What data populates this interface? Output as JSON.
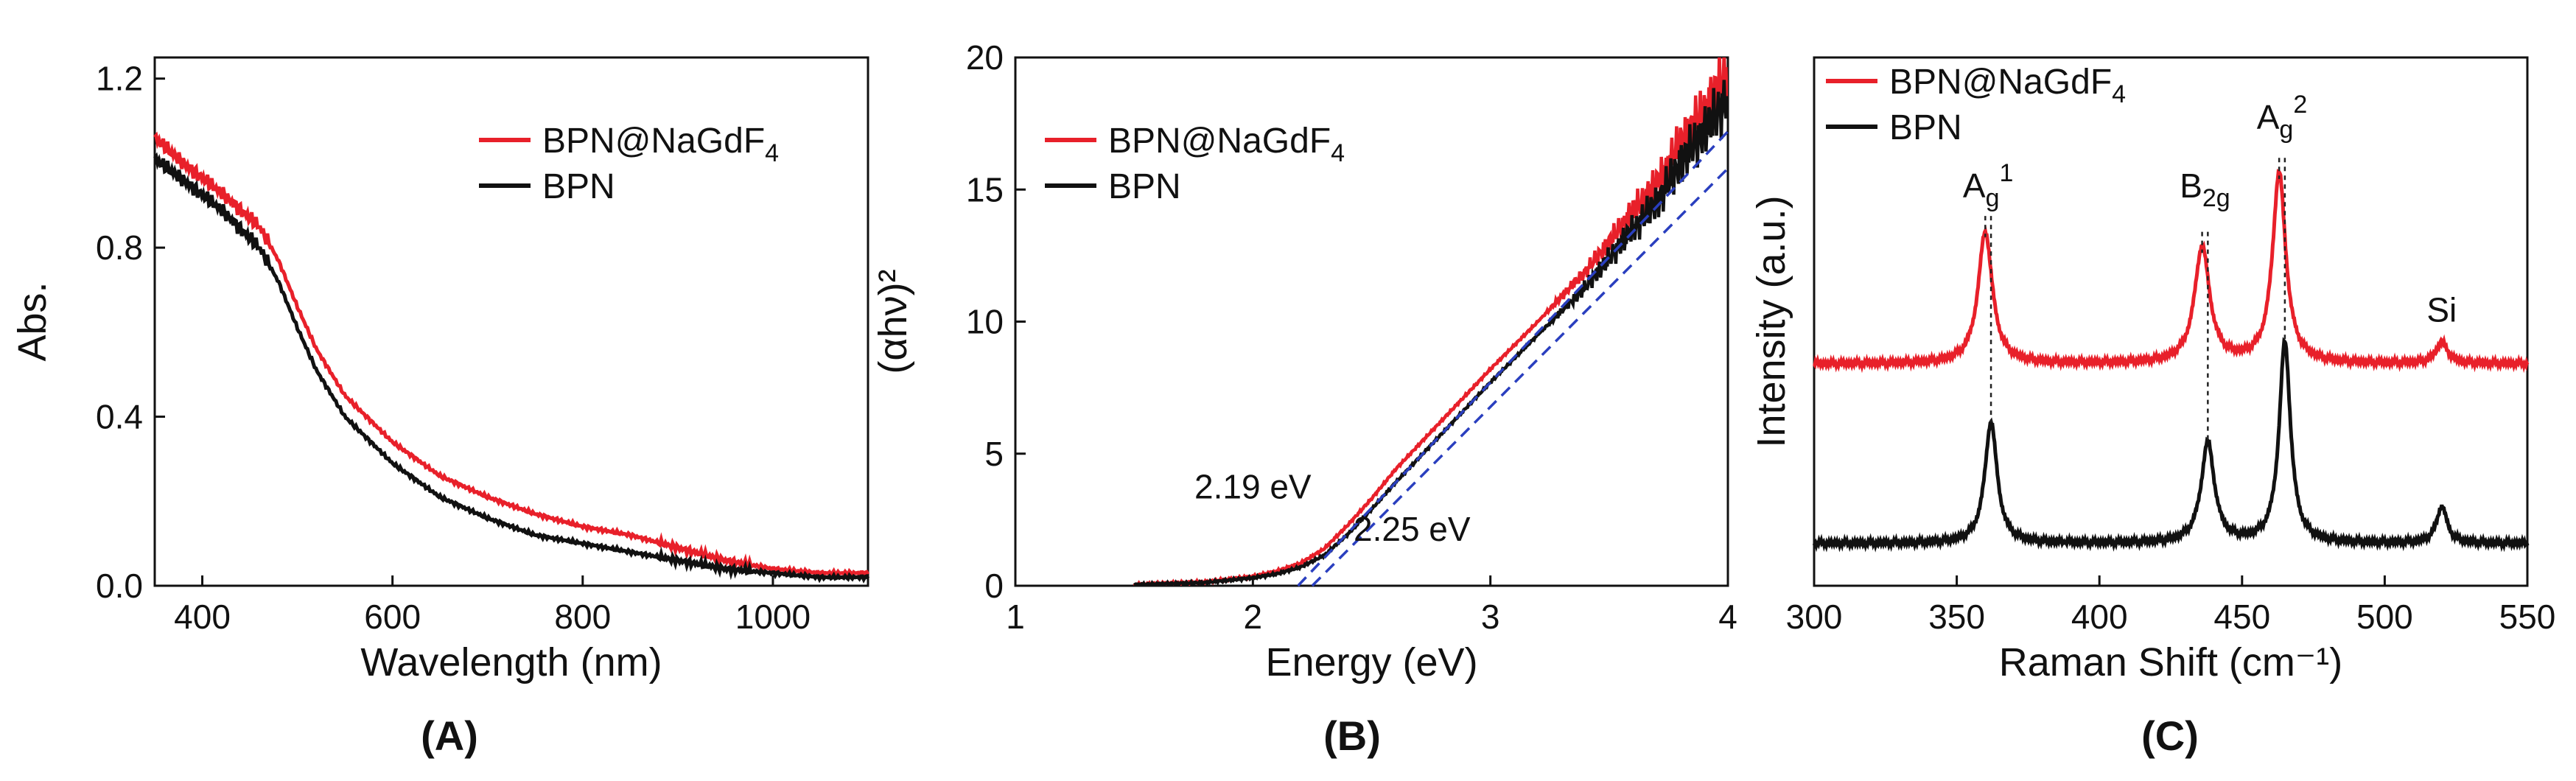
{
  "figure": {
    "panels": [
      "(A)",
      "(B)",
      "(C)"
    ]
  },
  "chart_data": [
    {
      "type": "line",
      "panel_label": "(A)",
      "xlabel": "Wavelength (nm)",
      "ylabel": "Abs.",
      "xlim": [
        350,
        1100
      ],
      "ylim": [
        0,
        1.25
      ],
      "xticks": [
        400,
        600,
        800,
        1000
      ],
      "xtick_labels": [
        "400",
        "600",
        "800",
        "1000"
      ],
      "yticks": [
        0,
        0.4,
        0.8,
        1.2
      ],
      "ytick_labels": [
        "0.0",
        "0.4",
        "0.8",
        "1.2"
      ],
      "legend": {
        "position": "top-right",
        "entries": [
          {
            "base": "BPN@NaGdF",
            "sub": "4",
            "color": "#e8202a"
          },
          {
            "base": "BPN",
            "sub": "",
            "color": "#111111"
          }
        ]
      },
      "series": [
        {
          "name": "BPN@NaGdF4",
          "color": "#e8202a",
          "x": [
            350,
            380,
            420,
            460,
            480,
            500,
            520,
            550,
            600,
            650,
            700,
            750,
            800,
            850,
            900,
            950,
            1000,
            1050,
            1100
          ],
          "y": [
            1.06,
            1.0,
            0.93,
            0.85,
            0.77,
            0.66,
            0.56,
            0.45,
            0.34,
            0.26,
            0.21,
            0.17,
            0.14,
            0.12,
            0.09,
            0.06,
            0.04,
            0.03,
            0.03
          ]
        },
        {
          "name": "BPN",
          "color": "#111111",
          "x": [
            350,
            380,
            420,
            460,
            480,
            500,
            520,
            550,
            600,
            650,
            700,
            750,
            800,
            850,
            900,
            950,
            1000,
            1050,
            1100
          ],
          "y": [
            1.01,
            0.96,
            0.89,
            0.8,
            0.72,
            0.61,
            0.51,
            0.4,
            0.29,
            0.21,
            0.16,
            0.12,
            0.1,
            0.08,
            0.06,
            0.04,
            0.03,
            0.02,
            0.02
          ]
        }
      ]
    },
    {
      "type": "line",
      "panel_label": "(B)",
      "xlabel": "Energy (eV)",
      "ylabel": "(αhν)²",
      "xlim": [
        1,
        4
      ],
      "ylim": [
        0,
        20
      ],
      "xticks": [
        1,
        2,
        3,
        4
      ],
      "xtick_labels": [
        "1",
        "2",
        "3",
        "4"
      ],
      "yticks": [
        0,
        5,
        10,
        15,
        20
      ],
      "ytick_labels": [
        "0",
        "5",
        "10",
        "15",
        "20"
      ],
      "legend": {
        "position": "top-left",
        "entries": [
          {
            "base": "BPN@NaGdF",
            "sub": "4",
            "color": "#e8202a"
          },
          {
            "base": "BPN",
            "sub": "",
            "color": "#111111"
          }
        ]
      },
      "series": [
        {
          "name": "BPN@NaGdF4",
          "color": "#e8202a",
          "x": [
            1.5,
            1.8,
            2.0,
            2.1,
            2.2,
            2.3,
            2.4,
            2.5,
            2.6,
            2.8,
            3.0,
            3.2,
            3.4,
            3.5,
            3.6,
            3.7,
            3.8,
            3.9,
            4.0
          ],
          "y": [
            0.05,
            0.15,
            0.35,
            0.55,
            0.85,
            1.4,
            2.3,
            3.3,
            4.4,
            6.3,
            8.2,
            10.0,
            11.9,
            13.0,
            14.2,
            15.2,
            16.8,
            18.0,
            19.5
          ]
        },
        {
          "name": "BPN",
          "color": "#111111",
          "x": [
            1.5,
            1.8,
            2.0,
            2.1,
            2.2,
            2.3,
            2.4,
            2.5,
            2.6,
            2.8,
            3.0,
            3.2,
            3.4,
            3.5,
            3.6,
            3.7,
            3.8,
            3.9,
            4.0
          ],
          "y": [
            0.04,
            0.12,
            0.3,
            0.45,
            0.7,
            1.15,
            1.95,
            2.9,
            3.9,
            5.8,
            7.7,
            9.5,
            11.3,
            12.4,
            13.5,
            14.5,
            16.0,
            17.2,
            18.5
          ]
        }
      ],
      "fit_lines": [
        {
          "name": "fit-BPN@NaGdF4",
          "color": "#2a3fbf",
          "x": [
            2.19,
            4.0
          ],
          "y": [
            0,
            17.2
          ]
        },
        {
          "name": "fit-BPN",
          "color": "#2a3fbf",
          "x": [
            2.25,
            4.0
          ],
          "y": [
            0,
            15.8
          ]
        }
      ],
      "annotations": [
        "2.19 eV",
        "2.25 eV"
      ]
    },
    {
      "type": "line",
      "panel_label": "(C)",
      "xlabel": "Raman Shift (cm⁻¹)",
      "ylabel": "Intensity (a.u.)",
      "xlim": [
        300,
        550
      ],
      "ylim": [
        0,
        1
      ],
      "xticks": [
        300,
        350,
        400,
        450,
        500,
        550
      ],
      "xtick_labels": [
        "300",
        "350",
        "400",
        "450",
        "500",
        "550"
      ],
      "legend": {
        "position": "top-left",
        "entries": [
          {
            "base": "BPN@NaGdF",
            "sub": "4",
            "color": "#e8202a"
          },
          {
            "base": "BPN",
            "sub": "",
            "color": "#111111"
          }
        ]
      },
      "series": [
        {
          "name": "BPN@NaGdF4",
          "color": "#e8202a",
          "baseline": 0.42,
          "peaks": [
            {
              "center": 360,
              "height": 0.25,
              "width": 3.0
            },
            {
              "center": 436,
              "height": 0.22,
              "width": 3.2
            },
            {
              "center": 463,
              "height": 0.36,
              "width": 2.8
            },
            {
              "center": 520,
              "height": 0.04,
              "width": 2.5
            }
          ]
        },
        {
          "name": "BPN",
          "color": "#111111",
          "baseline": 0.08,
          "peaks": [
            {
              "center": 362,
              "height": 0.23,
              "width": 2.6
            },
            {
              "center": 438,
              "height": 0.19,
              "width": 2.8
            },
            {
              "center": 465,
              "height": 0.38,
              "width": 2.4
            },
            {
              "center": 520,
              "height": 0.07,
              "width": 2.2
            }
          ]
        }
      ],
      "peak_labels": [
        {
          "base": "A",
          "sub": "g",
          "sup": "1",
          "x": 361
        },
        {
          "base": "B",
          "sub": "2g",
          "sup": "",
          "x": 437
        },
        {
          "base": "A",
          "sub": "g",
          "sup": "2",
          "x": 464
        },
        {
          "base": "Si",
          "sub": "",
          "sup": "",
          "x": 520
        }
      ]
    }
  ]
}
